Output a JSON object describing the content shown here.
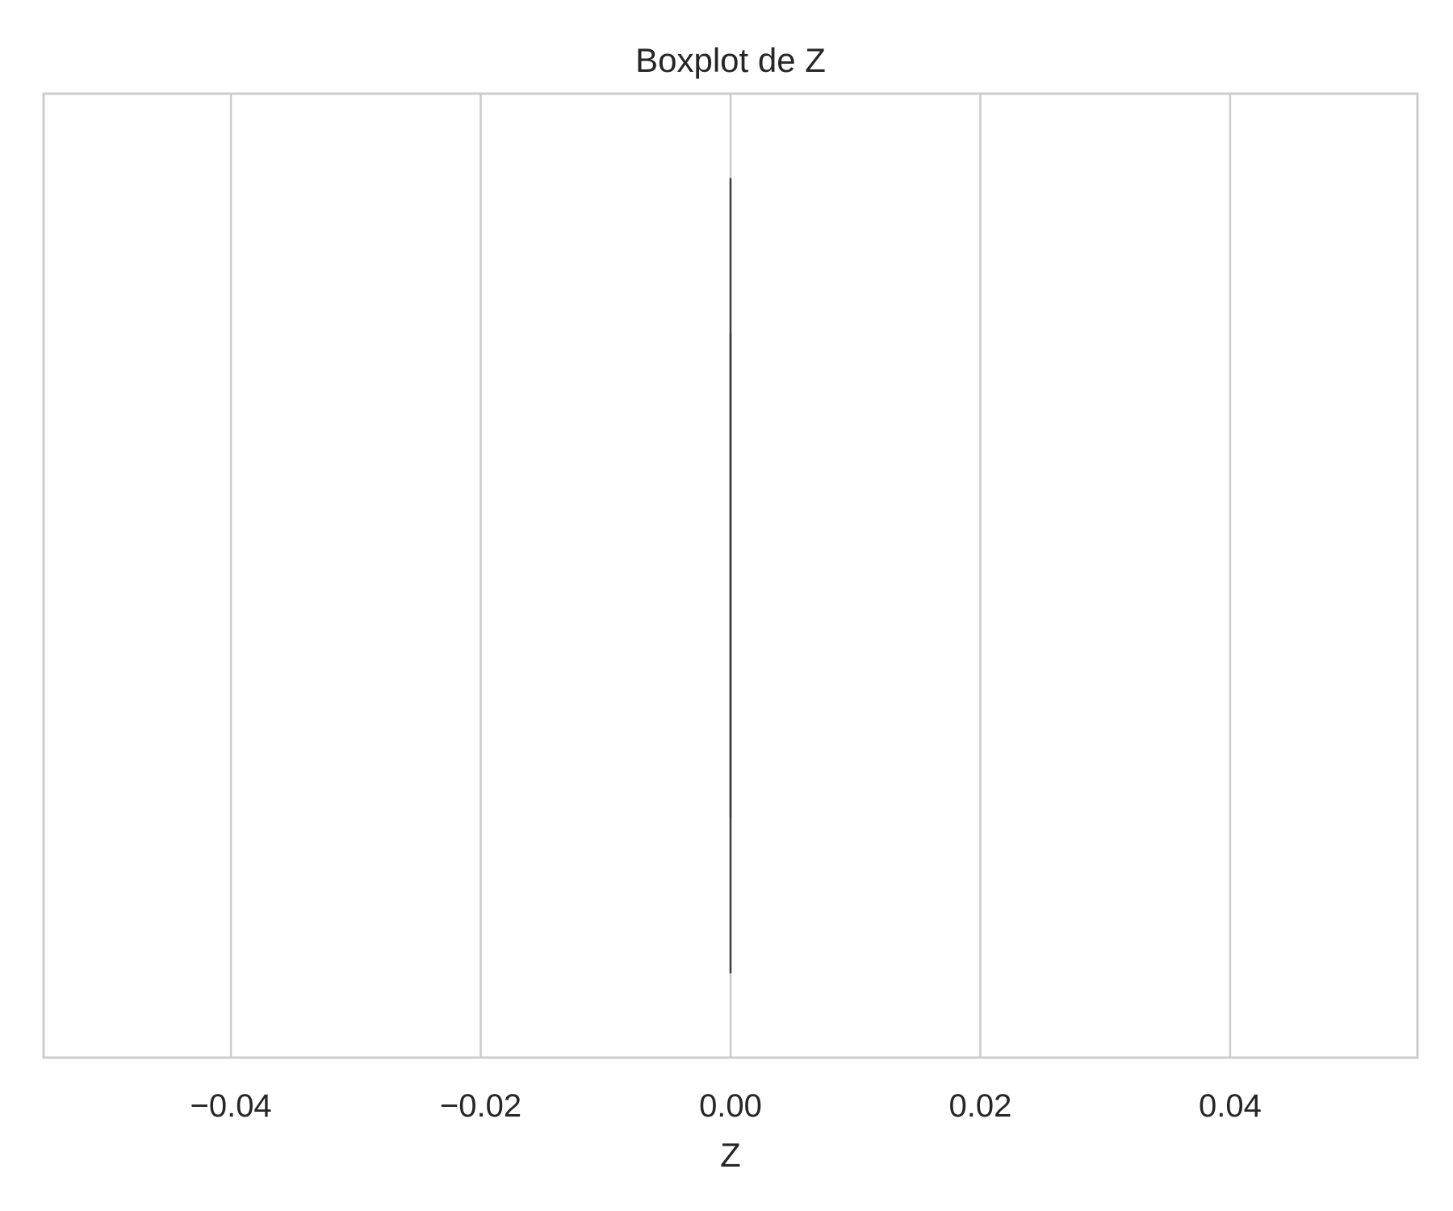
{
  "chart_data": {
    "type": "boxplot",
    "title": "Boxplot de Z",
    "xlabel": "Z",
    "ylabel": "",
    "xlim": [
      -0.055,
      0.055
    ],
    "x_ticks": [
      -0.04,
      -0.02,
      0.0,
      0.02,
      0.04
    ],
    "x_tick_labels": [
      "−0.04",
      "−0.02",
      "0.00",
      "0.02",
      "0.04"
    ],
    "grid": true,
    "orientation": "horizontal",
    "series": [
      {
        "min": 0.0,
        "q1": 0.0,
        "median": 0.0,
        "q3": 0.0,
        "max": 0.0
      }
    ],
    "colors": {
      "grid": "#cccccc",
      "spine": "#cccccc",
      "box": "#3f3f3f",
      "text": "#262626"
    }
  }
}
